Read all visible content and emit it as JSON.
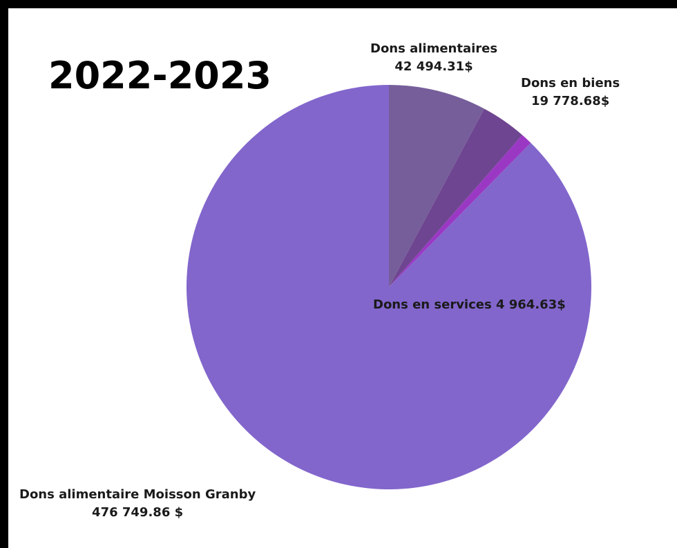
{
  "chart_data": {
    "type": "pie",
    "title": "2022-2023",
    "slices": [
      {
        "name": "Dons alimentaires",
        "value": 42494.31,
        "value_label": "42 494.31$",
        "color": "#765e9a"
      },
      {
        "name": "Dons en biens",
        "value": 19778.68,
        "value_label": "19 778.68$",
        "color": "#6e4590"
      },
      {
        "name": "Dons en services",
        "value": 4964.63,
        "value_label": "4 964.63$",
        "color": "#9a38c4"
      },
      {
        "name": "Dons alimentaire Moisson Granby",
        "value": 476749.86,
        "value_label": "476 749.86 $",
        "color": "#8266cc"
      }
    ],
    "start_angle_deg": 0,
    "direction": "clockwise"
  }
}
